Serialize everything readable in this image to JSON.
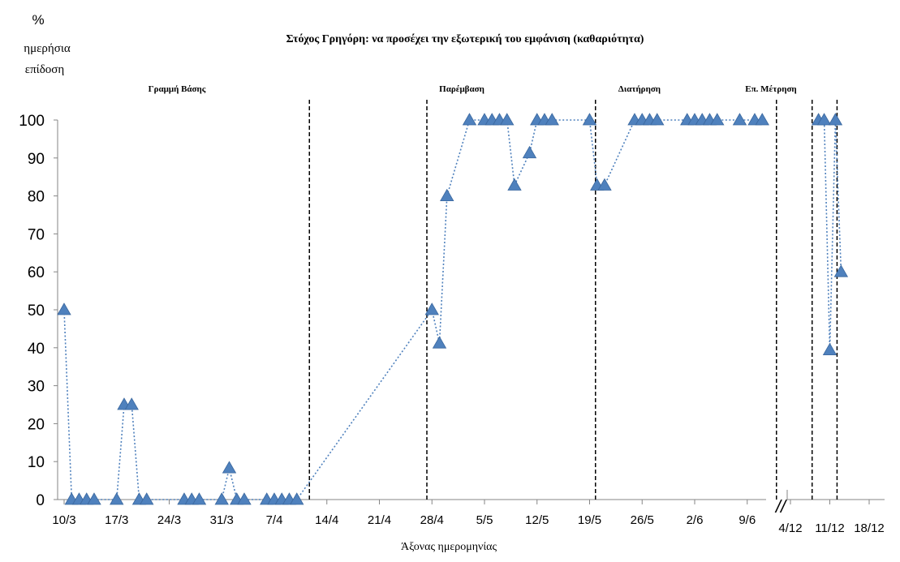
{
  "chart_data": {
    "type": "scatter",
    "title": "Στόχος Γρηγόρη: να προσέχει την εξωτερική του εμφάνιση (καθαριότητα)",
    "ylabel_symbol": "%",
    "ylabel_lines": [
      "ημερήσια",
      "επίδοση"
    ],
    "xlabel": "Άξονας ημερομηνίας",
    "ylim": [
      0,
      100
    ],
    "y_ticks": [
      0,
      10,
      20,
      30,
      40,
      50,
      60,
      70,
      80,
      90,
      100
    ],
    "phases": [
      "Γραμμή Βάσης",
      "Παρέμβαση",
      "Διατήρηση",
      "Επ. Μέτρηση"
    ],
    "phase_change_dates": [
      "12/4",
      "27/4",
      "20/5",
      "13/6",
      "8/12",
      "12/12"
    ],
    "axis_break": "//",
    "segments": [
      {
        "x_ticks": [
          "10/3",
          "17/3",
          "24/3",
          "31/3",
          "7/4",
          "14/4",
          "21/4",
          "28/4",
          "5/5",
          "12/5",
          "19/5",
          "26/5",
          "2/6",
          "9/6"
        ],
        "points": [
          {
            "x": "10/3",
            "y": 50
          },
          {
            "x": "11/3",
            "y": 0
          },
          {
            "x": "12/3",
            "y": 0
          },
          {
            "x": "13/3",
            "y": 0
          },
          {
            "x": "14/3",
            "y": 0
          },
          {
            "x": "17/3",
            "y": 0
          },
          {
            "x": "18/3",
            "y": 25
          },
          {
            "x": "19/3",
            "y": 25
          },
          {
            "x": "20/3",
            "y": 0
          },
          {
            "x": "21/3",
            "y": 0
          },
          {
            "x": "26/3",
            "y": 0
          },
          {
            "x": "27/3",
            "y": 0
          },
          {
            "x": "28/3",
            "y": 0
          },
          {
            "x": "31/3",
            "y": 0
          },
          {
            "x": "1/4",
            "y": 8.3
          },
          {
            "x": "2/4",
            "y": 0
          },
          {
            "x": "3/4",
            "y": 0
          },
          {
            "x": "6/4",
            "y": 0
          },
          {
            "x": "7/4",
            "y": 0
          },
          {
            "x": "8/4",
            "y": 0
          },
          {
            "x": "9/4",
            "y": 0
          },
          {
            "x": "10/4",
            "y": 0
          },
          {
            "x": "28/4",
            "y": 50
          },
          {
            "x": "29/4",
            "y": 41.2
          },
          {
            "x": "30/4",
            "y": 80
          },
          {
            "x": "3/5",
            "y": 100
          },
          {
            "x": "5/5",
            "y": 100
          },
          {
            "x": "6/5",
            "y": 100
          },
          {
            "x": "7/5",
            "y": 100
          },
          {
            "x": "8/5",
            "y": 100
          },
          {
            "x": "9/5",
            "y": 82.8
          },
          {
            "x": "11/5",
            "y": 91.3
          },
          {
            "x": "12/5",
            "y": 100
          },
          {
            "x": "13/5",
            "y": 100
          },
          {
            "x": "14/5",
            "y": 100
          },
          {
            "x": "19/5",
            "y": 100
          },
          {
            "x": "20/5",
            "y": 82.8
          },
          {
            "x": "21/5",
            "y": 82.8
          },
          {
            "x": "25/5",
            "y": 100
          },
          {
            "x": "26/5",
            "y": 100
          },
          {
            "x": "27/5",
            "y": 100
          },
          {
            "x": "28/5",
            "y": 100
          },
          {
            "x": "1/6",
            "y": 100
          },
          {
            "x": "2/6",
            "y": 100
          },
          {
            "x": "3/6",
            "y": 100
          },
          {
            "x": "4/6",
            "y": 100
          },
          {
            "x": "5/6",
            "y": 100
          },
          {
            "x": "8/6",
            "y": 100
          },
          {
            "x": "10/6",
            "y": 100
          },
          {
            "x": "11/6",
            "y": 100
          }
        ]
      },
      {
        "x_ticks": [
          "4/12",
          "11/12",
          "18/12"
        ],
        "points": [
          {
            "x": "9/12",
            "y": 100
          },
          {
            "x": "10/12",
            "y": 100
          },
          {
            "x": "11/12",
            "y": 39.4
          },
          {
            "x": "12/12",
            "y": 100
          },
          {
            "x": "13/12",
            "y": 60
          }
        ]
      }
    ],
    "marker": "triangle",
    "line_style": "dotted",
    "series_color": "#4F81BD",
    "marker_edge_color": "#3A679E",
    "grid": false
  }
}
